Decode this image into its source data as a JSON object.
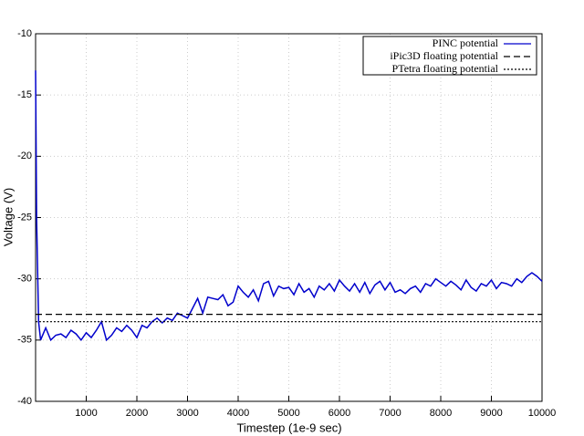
{
  "chart_data": {
    "type": "line",
    "xlabel": "Timestep (1e-9 sec)",
    "ylabel": "Voltage (V)",
    "xlim": [
      0,
      10000
    ],
    "ylim": [
      -40,
      -10
    ],
    "xticks": [
      1000,
      2000,
      3000,
      4000,
      5000,
      6000,
      7000,
      8000,
      9000,
      10000
    ],
    "yticks": [
      -10,
      -15,
      -20,
      -25,
      -30,
      -35,
      -40
    ],
    "grid": true,
    "legend": "top-right",
    "series": [
      {
        "name": "PINC potential",
        "color": "#0000cc",
        "dash": "solid",
        "x": [
          0,
          20,
          60,
          100,
          200,
          300,
          400,
          500,
          600,
          700,
          800,
          900,
          1000,
          1100,
          1200,
          1300,
          1400,
          1500,
          1600,
          1700,
          1800,
          1900,
          2000,
          2100,
          2200,
          2300,
          2400,
          2500,
          2600,
          2700,
          2800,
          2900,
          3000,
          3100,
          3200,
          3300,
          3400,
          3500,
          3600,
          3700,
          3800,
          3900,
          4000,
          4100,
          4200,
          4300,
          4400,
          4500,
          4600,
          4700,
          4800,
          4900,
          5000,
          5100,
          5200,
          5300,
          5400,
          5500,
          5600,
          5700,
          5800,
          5900,
          6000,
          6100,
          6200,
          6300,
          6400,
          6500,
          6600,
          6700,
          6800,
          6900,
          7000,
          7100,
          7200,
          7300,
          7400,
          7500,
          7600,
          7700,
          7800,
          7900,
          8000,
          8100,
          8200,
          8300,
          8400,
          8500,
          8600,
          8700,
          8800,
          8900,
          9000,
          9100,
          9200,
          9300,
          9400,
          9500,
          9600,
          9700,
          9800,
          9900,
          10000
        ],
        "values": [
          -13,
          -25,
          -33.5,
          -35,
          -34,
          -35,
          -34.6,
          -34.5,
          -34.8,
          -34.2,
          -34.5,
          -35,
          -34.4,
          -34.8,
          -34.2,
          -33.5,
          -35,
          -34.6,
          -34,
          -34.3,
          -33.8,
          -34.2,
          -34.8,
          -33.8,
          -34,
          -33.5,
          -33.2,
          -33.6,
          -33.2,
          -33.4,
          -32.8,
          -33,
          -33.2,
          -32.4,
          -31.6,
          -32.8,
          -31.5,
          -31.6,
          -31.7,
          -31.3,
          -32.2,
          -31.9,
          -30.6,
          -31.1,
          -31.5,
          -30.9,
          -31.8,
          -30.4,
          -30.2,
          -31.4,
          -30.6,
          -30.8,
          -30.7,
          -31.3,
          -30.4,
          -31.1,
          -30.8,
          -31.5,
          -30.6,
          -30.9,
          -30.4,
          -31,
          -30.1,
          -30.6,
          -31,
          -30.4,
          -31.1,
          -30.3,
          -31.2,
          -30.5,
          -30.2,
          -30.9,
          -30.3,
          -31.1,
          -30.9,
          -31.2,
          -30.8,
          -30.6,
          -31.1,
          -30.4,
          -30.6,
          -30,
          -30.3,
          -30.6,
          -30.2,
          -30.5,
          -30.9,
          -30.1,
          -30.7,
          -31,
          -30.4,
          -30.6,
          -30.1,
          -30.8,
          -30.3,
          -30.4,
          -30.6,
          -30,
          -30.3,
          -29.8,
          -29.5,
          -29.8,
          -30.2
        ]
      },
      {
        "name": "iPic3D floating potential",
        "color": "#000000",
        "dash": "dashed",
        "x": [
          0,
          10000
        ],
        "values": [
          -32.9,
          -32.9
        ]
      },
      {
        "name": "PTetra floating potential",
        "color": "#000000",
        "dash": "dotted",
        "x": [
          0,
          10000
        ],
        "values": [
          -33.5,
          -33.5
        ]
      }
    ]
  }
}
